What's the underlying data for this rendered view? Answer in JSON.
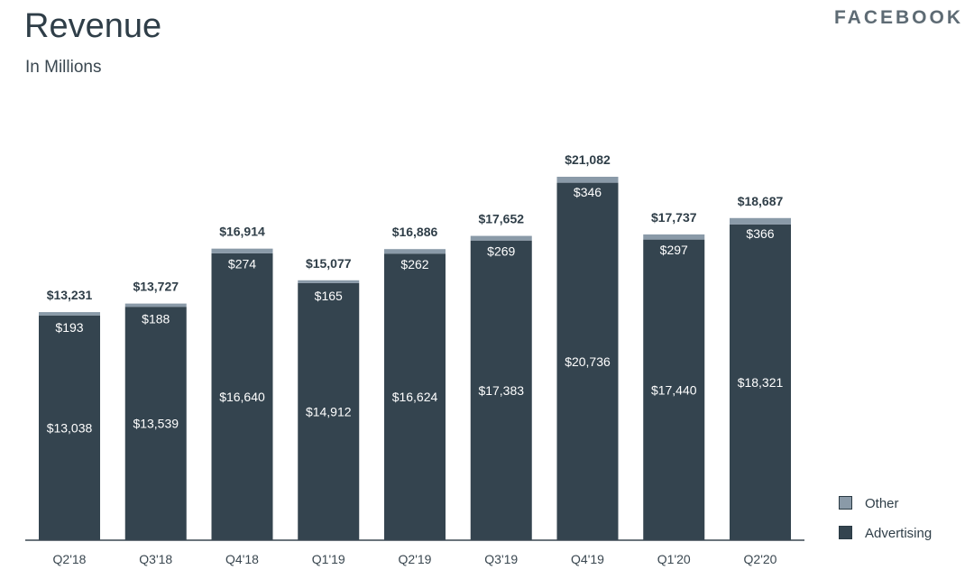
{
  "brand": "FACEBOOK",
  "colors": {
    "advertising": "#34444f",
    "other": "#8a9aa8",
    "axis": "#3a4750"
  },
  "chart_data": {
    "type": "bar",
    "stacked": true,
    "title": "Revenue",
    "subtitle": "In Millions",
    "categories": [
      "Q2'18",
      "Q3'18",
      "Q4'18",
      "Q1'19",
      "Q2'19",
      "Q3'19",
      "Q4'19",
      "Q1'20",
      "Q2'20"
    ],
    "series": [
      {
        "name": "Advertising",
        "values": [
          13038,
          13539,
          16640,
          14912,
          16624,
          17383,
          20736,
          17440,
          18321
        ],
        "labels": [
          "$13,038",
          "$13,539",
          "$16,640",
          "$14,912",
          "$16,624",
          "$17,383",
          "$20,736",
          "$17,440",
          "$18,321"
        ]
      },
      {
        "name": "Other",
        "values": [
          193,
          188,
          274,
          165,
          262,
          269,
          346,
          297,
          366
        ],
        "labels": [
          "$193",
          "$188",
          "$274",
          "$165",
          "$262",
          "$269",
          "$346",
          "$297",
          "$366"
        ]
      }
    ],
    "totals": [
      13231,
      13727,
      16914,
      15077,
      16886,
      17652,
      21082,
      17737,
      18687
    ],
    "total_labels": [
      "$13,231",
      "$13,727",
      "$16,914",
      "$15,077",
      "$16,886",
      "$17,652",
      "$21,082",
      "$17,737",
      "$18,687"
    ],
    "ylim": [
      0,
      21082
    ],
    "grid": false,
    "legend": "bottom-right"
  }
}
